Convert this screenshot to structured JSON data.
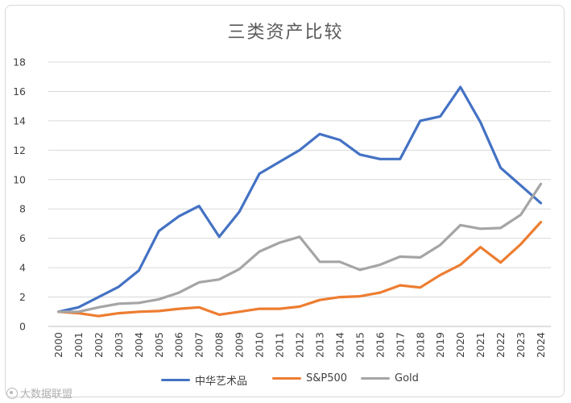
{
  "chart_data": {
    "type": "line",
    "title": "三类资产比较",
    "xlabel": "",
    "ylabel": "",
    "ylim": [
      0,
      18
    ],
    "yticks": [
      "0",
      "2",
      "4",
      "6",
      "8",
      "10",
      "12",
      "14",
      "16",
      "18"
    ],
    "grid": true,
    "legend_position": "bottom",
    "x": [
      "2000",
      "2001",
      "2002",
      "2003",
      "2004",
      "2005",
      "2006",
      "2007",
      "2008",
      "2009",
      "2010",
      "2011",
      "2012",
      "2013",
      "2014",
      "2015",
      "2016",
      "2017",
      "2018",
      "2019",
      "2020",
      "2021",
      "2022",
      "2023",
      "2024"
    ],
    "series": [
      {
        "name": "中华艺术品",
        "color": "#4472c4",
        "values": [
          1.0,
          1.3,
          2.0,
          2.7,
          3.8,
          6.5,
          7.5,
          8.2,
          6.1,
          7.8,
          10.4,
          11.2,
          12.0,
          13.1,
          12.7,
          11.7,
          11.4,
          11.4,
          14.0,
          14.3,
          16.3,
          13.9,
          10.8,
          9.6,
          8.4
        ]
      },
      {
        "name": "S&P500",
        "color": "#ed7d31",
        "values": [
          1.0,
          0.9,
          0.7,
          0.9,
          1.0,
          1.05,
          1.2,
          1.3,
          0.8,
          1.0,
          1.2,
          1.2,
          1.35,
          1.8,
          2.0,
          2.05,
          2.3,
          2.8,
          2.65,
          3.5,
          4.2,
          5.4,
          4.35,
          5.6,
          7.1
        ]
      },
      {
        "name": "Gold",
        "color": "#a5a5a5",
        "values": [
          1.0,
          1.0,
          1.3,
          1.55,
          1.6,
          1.85,
          2.3,
          3.0,
          3.2,
          3.9,
          5.1,
          5.7,
          6.1,
          4.4,
          4.4,
          3.85,
          4.2,
          4.75,
          4.7,
          5.55,
          6.9,
          6.65,
          6.7,
          7.6,
          9.7
        ]
      }
    ]
  },
  "watermark": "大数据联盟"
}
